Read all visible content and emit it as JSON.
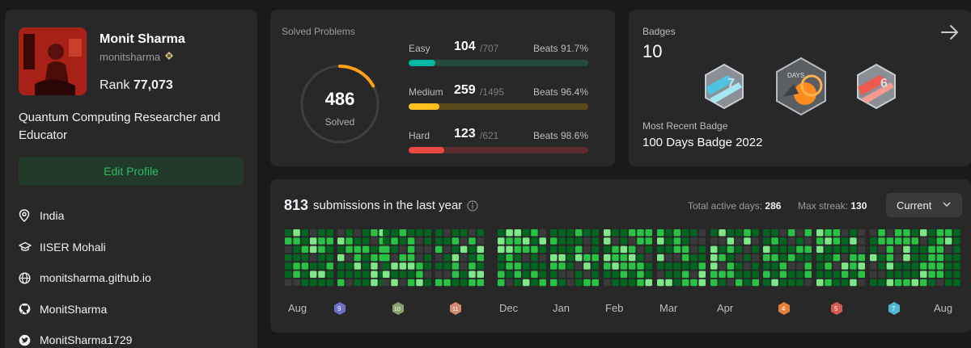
{
  "profile": {
    "name": "Monit Sharma",
    "username": "monitsharma",
    "rank_label": "Rank",
    "rank_value": "77,073",
    "bio": "Quantum Computing Researcher and Educator",
    "edit_button": "Edit Profile",
    "info": [
      {
        "icon": "location-icon",
        "text": "India"
      },
      {
        "icon": "graduation-cap-icon",
        "text": "IISER Mohali"
      },
      {
        "icon": "globe-icon",
        "text": "monitsharma.github.io"
      },
      {
        "icon": "github-icon",
        "text": "MonitSharma"
      },
      {
        "icon": "twitter-icon",
        "text": "MonitSharma1729"
      }
    ]
  },
  "solved": {
    "title": "Solved Problems",
    "total": "486",
    "total_label": "Solved",
    "progress_fraction": 0.17,
    "colors": {
      "ring_track": "#3e3e3e",
      "ring_fill": "#ffa116"
    },
    "rows": [
      {
        "name": "Easy",
        "solved": "104",
        "total": "/707",
        "beats_label": "Beats",
        "beats": "91.7%",
        "fraction": 0.147,
        "color": "#00b8a3",
        "track": "#244a3b"
      },
      {
        "name": "Medium",
        "solved": "259",
        "total": "/1495",
        "beats_label": "Beats",
        "beats": "96.4%",
        "fraction": 0.173,
        "color": "#ffc01e",
        "track": "#5a4b1e"
      },
      {
        "name": "Hard",
        "solved": "123",
        "total": "/621",
        "beats_label": "Beats",
        "beats": "98.6%",
        "fraction": 0.198,
        "color": "#ef4743",
        "track": "#5a2c2e"
      }
    ]
  },
  "badges": {
    "title": "Badges",
    "count": "10",
    "items": [
      {
        "icon": "july-badge-icon",
        "text": "7"
      },
      {
        "icon": "100-days-badge-icon",
        "text": "DAYS"
      },
      {
        "icon": "june-badge-icon",
        "text": "6"
      }
    ],
    "recent_label": "Most Recent Badge",
    "recent_name": "100 Days Badge 2022"
  },
  "submissions": {
    "count": "813",
    "label": "submissions in the last year",
    "active_label": "Total active days:",
    "active_value": "286",
    "streak_label": "Max streak:",
    "streak_value": "130",
    "select_value": "Current",
    "months": [
      "Aug",
      "Dec",
      "Jan",
      "Feb",
      "Mar",
      "Apr",
      "Aug"
    ],
    "monthly_badges": [
      "9",
      "10",
      "11",
      "4",
      "5",
      "7"
    ],
    "colors": {
      "empty": "#3a3a3a",
      "l1": "#016620",
      "l2": "#28c244",
      "l3": "#7ee787"
    }
  }
}
